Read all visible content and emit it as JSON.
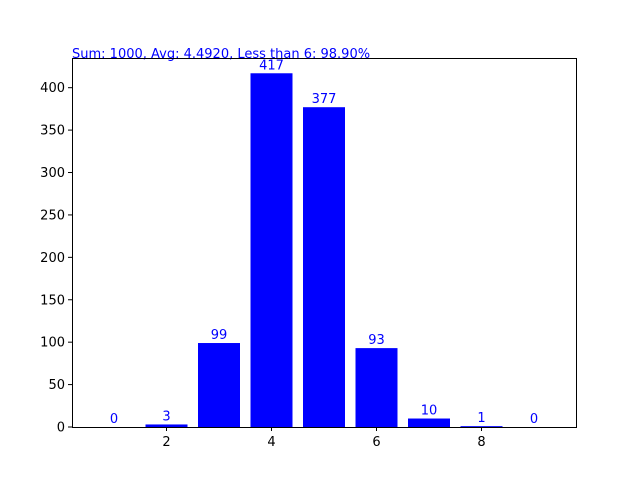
{
  "chart_data": {
    "type": "bar",
    "x": [
      1,
      2,
      3,
      4,
      5,
      6,
      7,
      8,
      9
    ],
    "values": [
      0,
      3,
      99,
      417,
      377,
      93,
      10,
      1,
      0
    ],
    "data_labels": [
      "0",
      "3",
      "99",
      "417",
      "377",
      "93",
      "10",
      "1",
      "0"
    ],
    "annotation": "Sum: 1000, Avg: 4.4920, Less than 6: 98.90%",
    "xlim": [
      0.2,
      9.8
    ],
    "ylim": [
      0,
      435
    ],
    "xticks": [
      2,
      4,
      6,
      8
    ],
    "yticks": [
      0,
      50,
      100,
      150,
      200,
      250,
      300,
      350,
      400
    ],
    "bar_color": "#0000ff",
    "label_color": "#0000ff",
    "annotation_color": "#0000ff",
    "grid": false,
    "title": "",
    "xlabel": "",
    "ylabel": ""
  }
}
